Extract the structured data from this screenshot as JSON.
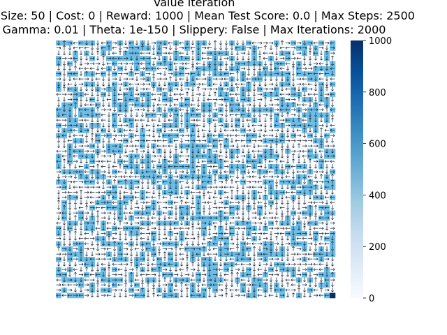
{
  "chart_data": {
    "type": "heatmap",
    "title_lines": [
      "Value Iteration",
      "Map Size: 50 | Cost: 0 | Reward: 1000 | Mean Test Score: 0.0 | Max Steps: 2500",
      "Gamma: 0.01 | Theta: 1e-150 | Slippery: False | Max Iterations: 2000"
    ],
    "grid": {
      "rows": 50,
      "cols": 50
    },
    "colorbar": {
      "vmin": 0,
      "vmax": 1000,
      "ticks": [
        "0",
        "200",
        "400",
        "600",
        "800",
        "1000"
      ],
      "colormap": "Blues"
    },
    "cell_value_levels": [
      0,
      600,
      1000
    ],
    "policy_symbols": [
      "←",
      "↓",
      "→",
      "↑"
    ],
    "colors": {
      "low": "#f7fbff",
      "mid": "#6bbee9",
      "high": "#08306b",
      "arrow": "#262626"
    }
  }
}
